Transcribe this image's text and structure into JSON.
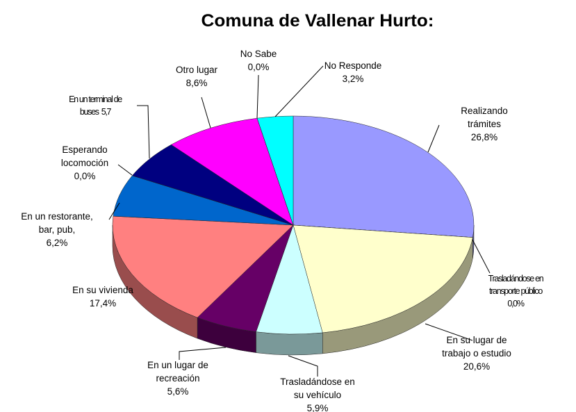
{
  "chart_data": {
    "type": "pie",
    "three_d": true,
    "title": "Comuna de Vallenar Hurto:",
    "categories": [
      "Realizando\ntrámites",
      "Trasladándose en\ntransporte público",
      "En su lugar de\ntrabajo o estudio",
      "Trasladándose en\nsu vehículo",
      "En un lugar de\nrecreación",
      "En su vivienda",
      "En un restorante,\nbar, pub,",
      "Esperando\nlocomoción",
      "En un terminal de\nbuses",
      "Otro lugar",
      "No Sabe",
      "No Responde"
    ],
    "values": [
      26.8,
      0,
      20.6,
      5.9,
      5.6,
      17.4,
      6.2,
      0,
      5.7,
      8.6,
      0,
      3.2
    ],
    "value_labels": [
      "26,8%",
      "0,0%",
      "20,6%",
      "5,9%",
      "5,6%",
      "17,4%",
      "6,2%",
      "0,0%",
      "5,7",
      "8,6%",
      "0,0%",
      "3,2%"
    ],
    "colors": [
      "#9999ff",
      "#993366",
      "#ffffcc",
      "#ccffff",
      "#660066",
      "#ff8080",
      "#0066cc",
      "#ccccff",
      "#000080",
      "#ff00ff",
      "#ffff00",
      "#00ffff"
    ]
  }
}
